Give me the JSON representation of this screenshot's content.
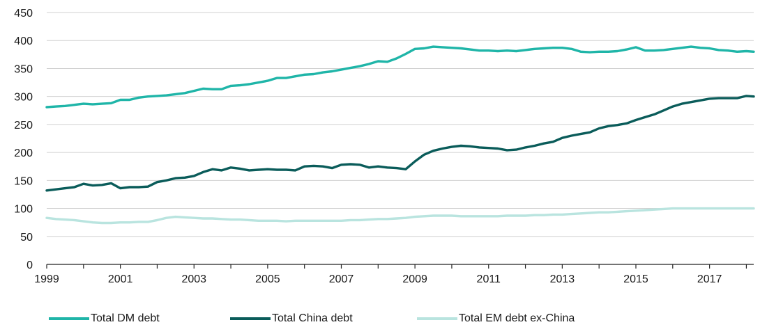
{
  "chart_data": {
    "type": "line",
    "title": "",
    "xlabel": "",
    "ylabel": "",
    "ylim": [
      0,
      450
    ],
    "xlim": [
      1999,
      2018.2
    ],
    "yticks": [
      0,
      50,
      100,
      150,
      200,
      250,
      300,
      350,
      400,
      450
    ],
    "xticks": [
      1999,
      2001,
      2003,
      2005,
      2007,
      2009,
      2011,
      2013,
      2015,
      2017
    ],
    "grid": "horizontal",
    "legend_position": "bottom",
    "x": [
      1999.0,
      1999.25,
      1999.5,
      1999.75,
      2000.0,
      2000.25,
      2000.5,
      2000.75,
      2001.0,
      2001.25,
      2001.5,
      2001.75,
      2002.0,
      2002.25,
      2002.5,
      2002.75,
      2003.0,
      2003.25,
      2003.5,
      2003.75,
      2004.0,
      2004.25,
      2004.5,
      2004.75,
      2005.0,
      2005.25,
      2005.5,
      2005.75,
      2006.0,
      2006.25,
      2006.5,
      2006.75,
      2007.0,
      2007.25,
      2007.5,
      2007.75,
      2008.0,
      2008.25,
      2008.5,
      2008.75,
      2009.0,
      2009.25,
      2009.5,
      2009.75,
      2010.0,
      2010.25,
      2010.5,
      2010.75,
      2011.0,
      2011.25,
      2011.5,
      2011.75,
      2012.0,
      2012.25,
      2012.5,
      2012.75,
      2013.0,
      2013.25,
      2013.5,
      2013.75,
      2014.0,
      2014.25,
      2014.5,
      2014.75,
      2015.0,
      2015.25,
      2015.5,
      2015.75,
      2016.0,
      2016.25,
      2016.5,
      2016.75,
      2017.0,
      2017.25,
      2017.5,
      2017.75,
      2018.0,
      2018.2
    ],
    "series": [
      {
        "name": "Total DM debt",
        "color": "#1fb5a8",
        "values": [
          281,
          282,
          283,
          285,
          287,
          286,
          287,
          288,
          294,
          294,
          298,
          300,
          301,
          302,
          304,
          306,
          310,
          314,
          313,
          313,
          319,
          320,
          322,
          325,
          328,
          333,
          333,
          336,
          339,
          340,
          343,
          345,
          348,
          351,
          354,
          358,
          363,
          362,
          368,
          376,
          385,
          386,
          389,
          388,
          387,
          386,
          384,
          382,
          382,
          381,
          382,
          381,
          383,
          385,
          386,
          387,
          387,
          385,
          380,
          379,
          380,
          380,
          381,
          384,
          388,
          382,
          382,
          383,
          385,
          387,
          389,
          387,
          386,
          383,
          382,
          380,
          381,
          380
        ]
      },
      {
        "name": "Total China debt",
        "color": "#0a5c5a",
        "values": [
          132,
          134,
          136,
          138,
          144,
          141,
          142,
          145,
          136,
          138,
          138,
          139,
          147,
          150,
          154,
          155,
          158,
          165,
          170,
          168,
          173,
          171,
          168,
          169,
          170,
          169,
          169,
          168,
          175,
          176,
          175,
          172,
          178,
          179,
          178,
          173,
          175,
          173,
          172,
          170,
          184,
          196,
          203,
          207,
          210,
          212,
          211,
          209,
          208,
          207,
          204,
          205,
          209,
          212,
          216,
          219,
          226,
          230,
          233,
          236,
          243,
          247,
          249,
          252,
          258,
          263,
          268,
          275,
          282,
          287,
          290,
          293,
          296,
          297,
          297,
          297,
          301,
          300
        ]
      },
      {
        "name": "Total EM debt ex-China",
        "color": "#b9e4df",
        "values": [
          83,
          81,
          80,
          79,
          77,
          75,
          74,
          74,
          75,
          75,
          76,
          76,
          79,
          83,
          85,
          84,
          83,
          82,
          82,
          81,
          80,
          80,
          79,
          78,
          78,
          78,
          77,
          78,
          78,
          78,
          78,
          78,
          78,
          79,
          79,
          80,
          81,
          81,
          82,
          83,
          85,
          86,
          87,
          87,
          87,
          86,
          86,
          86,
          86,
          86,
          87,
          87,
          87,
          88,
          88,
          89,
          89,
          90,
          91,
          92,
          93,
          93,
          94,
          95,
          96,
          97,
          98,
          99,
          100,
          100,
          100,
          100,
          100,
          100,
          100,
          100,
          100,
          100
        ]
      }
    ]
  }
}
